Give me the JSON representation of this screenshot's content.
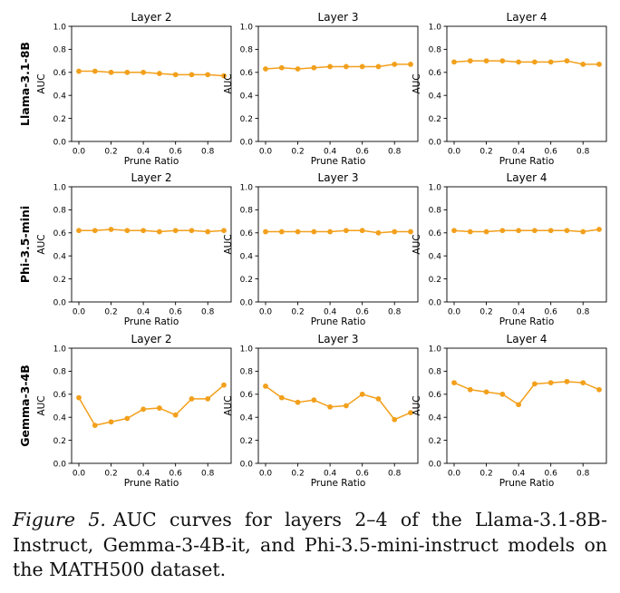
{
  "figure_label": "Figure 5.",
  "caption_text": "AUC curves for layers 2–4 of the Llama-3.1-8B-Instruct, Gemma-3-4B-it, and Phi-3.5-mini-instruct models on the MATH500 dataset.",
  "colors": {
    "line": "#f2a01c",
    "axis": "#000000"
  },
  "chart_data": {
    "type": "line",
    "rows": [
      "Llama-3.1-8B",
      "Phi-3.5-mini",
      "Gemma-3-4B"
    ],
    "columns": [
      "Layer 2",
      "Layer 3",
      "Layer 4"
    ],
    "xlabel": "Prune Ratio",
    "ylabel": "AUC",
    "x": [
      0.0,
      0.1,
      0.2,
      0.3,
      0.4,
      0.5,
      0.6,
      0.7,
      0.8,
      0.9
    ],
    "xlim": [
      -0.045,
      0.945
    ],
    "ylim": [
      0.0,
      1.0
    ],
    "xticks": [
      "0.0",
      "0.2",
      "0.4",
      "0.6",
      "0.8"
    ],
    "yticks": [
      "0.0",
      "0.2",
      "0.4",
      "0.6",
      "0.8",
      "1.0"
    ],
    "panels": [
      {
        "row": "Llama-3.1-8B",
        "title": "Layer 2",
        "values": [
          0.61,
          0.61,
          0.6,
          0.6,
          0.6,
          0.59,
          0.58,
          0.58,
          0.58,
          0.57
        ]
      },
      {
        "row": "Llama-3.1-8B",
        "title": "Layer 3",
        "values": [
          0.63,
          0.64,
          0.63,
          0.64,
          0.65,
          0.65,
          0.65,
          0.65,
          0.67,
          0.67
        ]
      },
      {
        "row": "Llama-3.1-8B",
        "title": "Layer 4",
        "values": [
          0.69,
          0.7,
          0.7,
          0.7,
          0.69,
          0.69,
          0.69,
          0.7,
          0.67,
          0.67
        ]
      },
      {
        "row": "Phi-3.5-mini",
        "title": "Layer 2",
        "values": [
          0.62,
          0.62,
          0.63,
          0.62,
          0.62,
          0.61,
          0.62,
          0.62,
          0.61,
          0.62
        ]
      },
      {
        "row": "Phi-3.5-mini",
        "title": "Layer 3",
        "values": [
          0.61,
          0.61,
          0.61,
          0.61,
          0.61,
          0.62,
          0.62,
          0.6,
          0.61,
          0.61
        ]
      },
      {
        "row": "Phi-3.5-mini",
        "title": "Layer 4",
        "values": [
          0.62,
          0.61,
          0.61,
          0.62,
          0.62,
          0.62,
          0.62,
          0.62,
          0.61,
          0.63
        ]
      },
      {
        "row": "Gemma-3-4B",
        "title": "Layer 2",
        "values": [
          0.57,
          0.33,
          0.36,
          0.39,
          0.47,
          0.48,
          0.42,
          0.56,
          0.56,
          0.68
        ]
      },
      {
        "row": "Gemma-3-4B",
        "title": "Layer 3",
        "values": [
          0.67,
          0.57,
          0.53,
          0.55,
          0.49,
          0.5,
          0.6,
          0.56,
          0.38,
          0.44
        ]
      },
      {
        "row": "Gemma-3-4B",
        "title": "Layer 4",
        "values": [
          0.7,
          0.64,
          0.62,
          0.6,
          0.51,
          0.69,
          0.7,
          0.71,
          0.7,
          0.64
        ]
      }
    ]
  }
}
